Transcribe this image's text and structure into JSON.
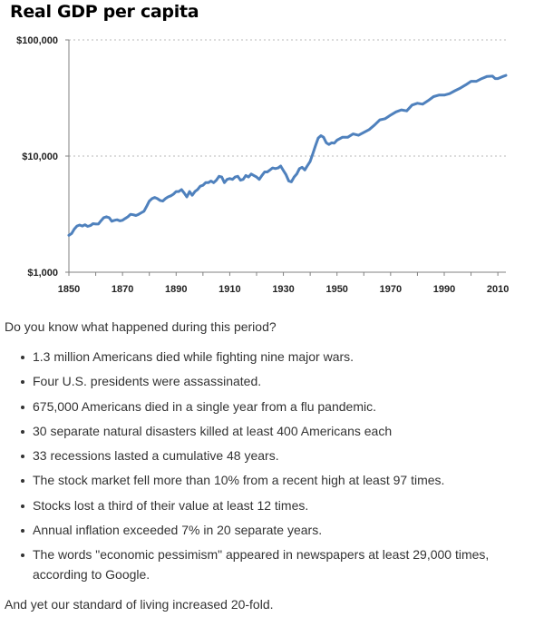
{
  "chart_data": {
    "type": "line",
    "title": "Real GDP per capita",
    "xlabel": "",
    "ylabel": "",
    "yscale": "log",
    "xlim": [
      1850,
      2013
    ],
    "ylim": [
      1000,
      100000
    ],
    "x_ticks": [
      "1850",
      "1870",
      "1890",
      "1910",
      "1930",
      "1950",
      "1970",
      "1990",
      "2010"
    ],
    "y_ticks": [
      {
        "value": 100000,
        "label": "$100,000"
      },
      {
        "value": 10000,
        "label": "$10,000"
      },
      {
        "value": 1000,
        "label": "$1,000"
      }
    ],
    "grid": "horizontal-dashed",
    "line_color": "#4f81bd",
    "series": [
      {
        "x": [
          1850,
          1851,
          1852,
          1853,
          1854,
          1855,
          1856,
          1857,
          1858,
          1859,
          1860,
          1861,
          1862,
          1863,
          1864,
          1865,
          1866,
          1867,
          1868,
          1869,
          1870,
          1871,
          1872,
          1873,
          1874,
          1875,
          1876,
          1877,
          1878,
          1879,
          1880,
          1881,
          1882,
          1883,
          1884,
          1885,
          1886,
          1887,
          1888,
          1889,
          1890,
          1891,
          1892,
          1893,
          1894,
          1895,
          1896,
          1897,
          1898,
          1899,
          1900,
          1901,
          1902,
          1903,
          1904,
          1905,
          1906,
          1907,
          1908,
          1909,
          1910,
          1911,
          1912,
          1913,
          1914,
          1915,
          1916,
          1917,
          1918,
          1919,
          1920,
          1921,
          1922,
          1923,
          1924,
          1925,
          1926,
          1927,
          1928,
          1929,
          1930,
          1931,
          1932,
          1933,
          1934,
          1935,
          1936,
          1937,
          1938,
          1939,
          1940,
          1941,
          1942,
          1943,
          1944,
          1945,
          1946,
          1947,
          1948,
          1949,
          1950,
          1952,
          1954,
          1956,
          1958,
          1960,
          1962,
          1964,
          1966,
          1968,
          1970,
          1972,
          1974,
          1976,
          1978,
          1980,
          1982,
          1984,
          1986,
          1988,
          1990,
          1992,
          1994,
          1996,
          1998,
          2000,
          2002,
          2004,
          2006,
          2008,
          2009,
          2010,
          2012,
          2013
        ],
        "values": [
          2080,
          2150,
          2350,
          2500,
          2550,
          2500,
          2560,
          2480,
          2520,
          2620,
          2600,
          2600,
          2780,
          2950,
          3000,
          2950,
          2750,
          2800,
          2830,
          2770,
          2800,
          2900,
          3000,
          3150,
          3120,
          3080,
          3150,
          3250,
          3350,
          3700,
          4100,
          4300,
          4400,
          4300,
          4150,
          4100,
          4300,
          4450,
          4550,
          4700,
          4950,
          4950,
          5150,
          4800,
          4450,
          4950,
          4600,
          4950,
          5150,
          5500,
          5600,
          5900,
          5900,
          6100,
          5900,
          6200,
          6700,
          6600,
          5900,
          6300,
          6400,
          6300,
          6600,
          6700,
          6200,
          6300,
          6800,
          6600,
          7000,
          6800,
          6600,
          6300,
          6800,
          7300,
          7300,
          7600,
          7900,
          7800,
          7900,
          8200,
          7500,
          6900,
          6100,
          6000,
          6600,
          7000,
          7800,
          8000,
          7600,
          8300,
          9000,
          10500,
          12300,
          14300,
          15000,
          14500,
          13000,
          12600,
          13000,
          12900,
          13700,
          14500,
          14500,
          15500,
          15100,
          16000,
          16900,
          18500,
          20500,
          21000,
          22500,
          24000,
          25000,
          24500,
          27500,
          28500,
          28000,
          30000,
          32500,
          33500,
          33500,
          34500,
          36500,
          38500,
          41000,
          44000,
          44000,
          46500,
          48500,
          48800,
          46500,
          46500,
          48500,
          49500
        ]
      }
    ]
  },
  "article": {
    "intro": "Do you know what happened during this period?",
    "facts": [
      "1.3 million Americans died while fighting nine major wars.",
      "Four U.S. presidents were assassinated.",
      "675,000 Americans died in a single year from a flu pandemic.",
      "30 separate natural disasters killed at least 400 Americans each",
      "33 recessions lasted a cumulative 48 years.",
      "The stock market fell more than 10% from a recent high at least 97 times.",
      "Stocks lost a third of their value at least 12 times.",
      "Annual inflation exceeded 7% in 20 separate years.",
      "The words \"economic pessimism\" appeared in newspapers at least 29,000 times, according to Google."
    ],
    "outro": "And yet our standard of living increased 20-fold."
  }
}
